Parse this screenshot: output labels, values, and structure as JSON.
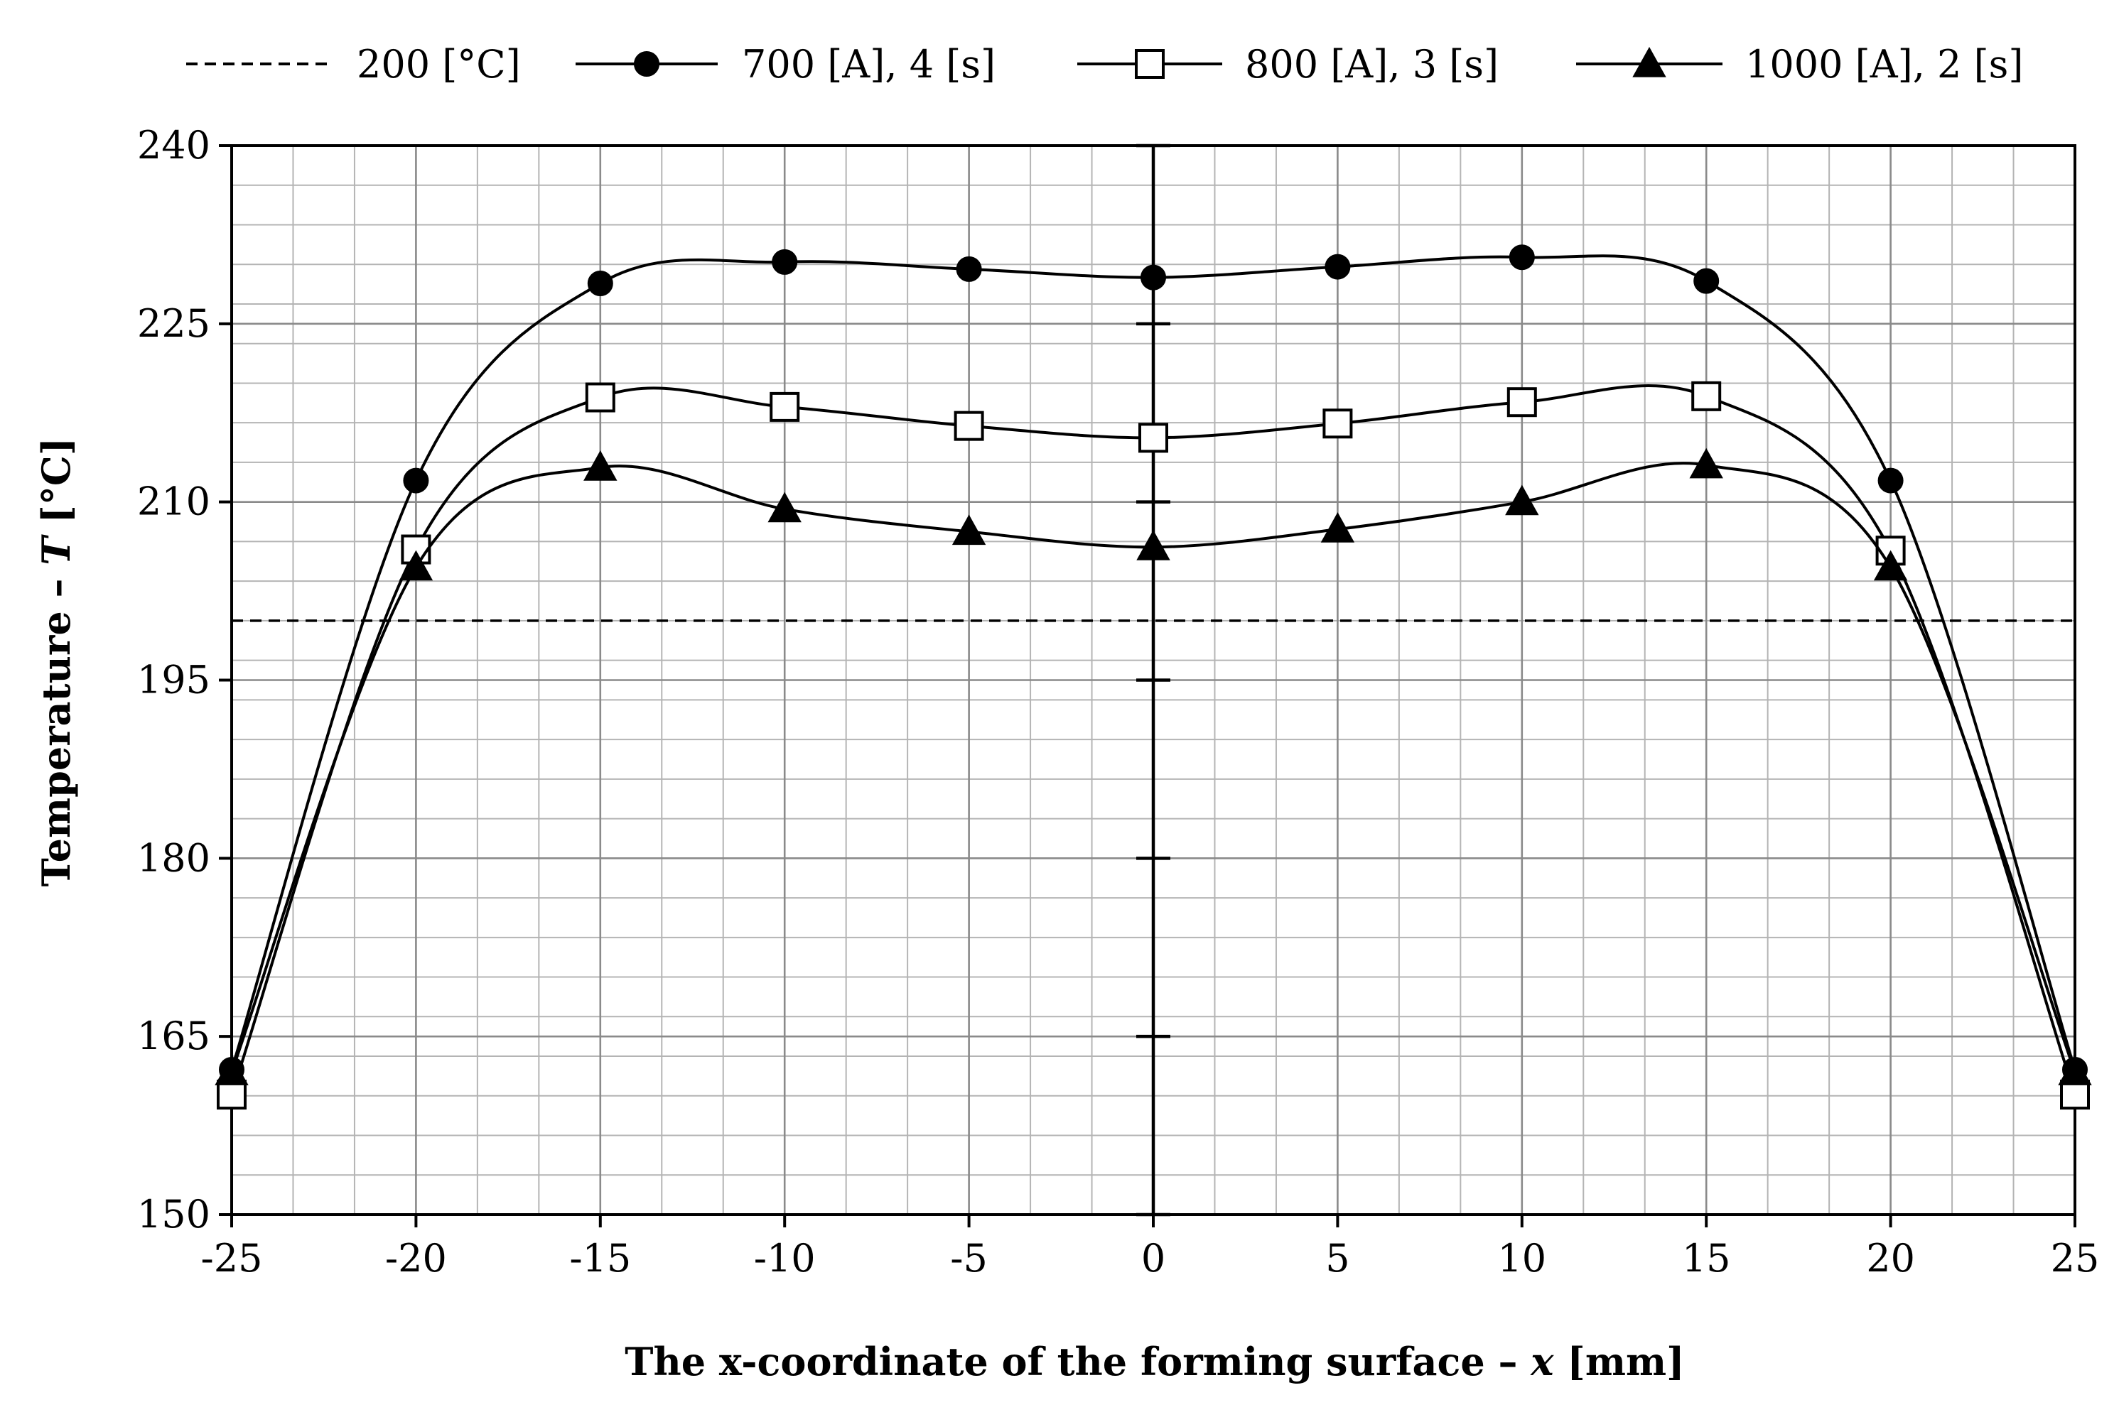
{
  "chart_data": {
    "type": "line",
    "xlabel_parts": [
      "The x-coordinate of the forming surface – ",
      "x",
      " [mm]"
    ],
    "ylabel_parts": [
      "Temperature – ",
      "T",
      " [°C]"
    ],
    "xlim": [
      -25,
      25
    ],
    "ylim": [
      150,
      240
    ],
    "x_ticks": [
      -25,
      -20,
      -15,
      -10,
      -5,
      0,
      5,
      10,
      15,
      20,
      25
    ],
    "y_ticks": [
      150,
      165,
      180,
      195,
      210,
      225,
      240
    ],
    "x_minor_step": 1.6667,
    "y_minor_step": 3.3333,
    "grid": true,
    "legend_position": "top",
    "reference_line": {
      "name": "200 [°C]",
      "y": 200,
      "style": "dashed"
    },
    "x": [
      -25,
      -20,
      -15,
      -10,
      -5,
      0,
      5,
      10,
      15,
      20,
      25
    ],
    "series": [
      {
        "name": "700 [A], 4 [s]",
        "marker": "circle-filled",
        "values": [
          162.2,
          211.8,
          228.4,
          230.2,
          229.6,
          228.9,
          229.8,
          230.6,
          228.6,
          211.8,
          162.2
        ]
      },
      {
        "name": "800 [A], 3 [s]",
        "marker": "square-open",
        "values": [
          160.1,
          206.0,
          218.8,
          218.0,
          216.4,
          215.4,
          216.6,
          218.4,
          218.9,
          205.9,
          160.1
        ]
      },
      {
        "name": "1000 [A], 2 [s]",
        "marker": "triangle-filled",
        "values": [
          162.0,
          204.5,
          212.9,
          209.4,
          207.5,
          206.2,
          207.7,
          210.0,
          213.1,
          204.5,
          162.0
        ]
      }
    ]
  }
}
